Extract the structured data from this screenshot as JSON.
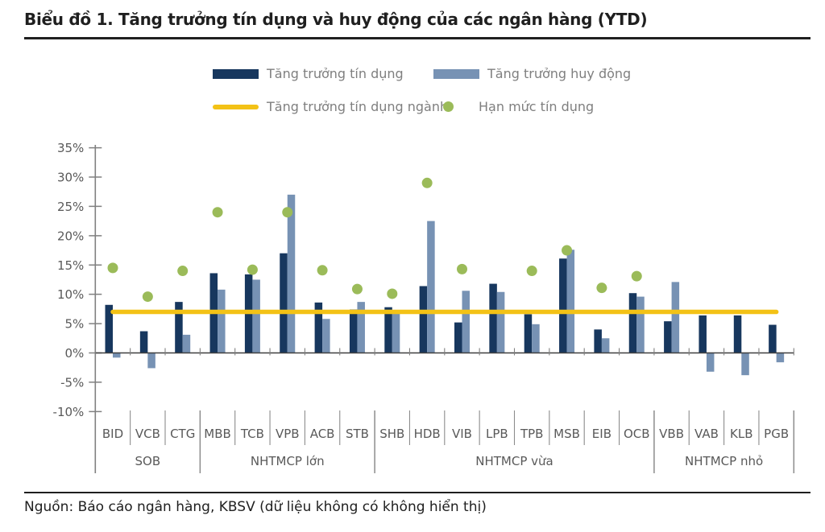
{
  "title": "Biểu đồ 1. Tăng trưởng tín dụng và huy động của các ngân hàng (YTD)",
  "source_note": "Nguồn: Báo cáo ngân hàng, KBSV (dữ liệu không có không hiển thị)",
  "colors": {
    "credit_bar": "#17375E",
    "deposit_bar": "#7792B4",
    "industry_line": "#F3C216",
    "limit_dot": "#9BBB59",
    "axis_line": "#808080",
    "zero_axis_line": "#3F3F3F",
    "axis_text": "#595959",
    "legend_text": "#7F7F7F",
    "separator": "#8C8C8C",
    "title_text": "#1F1F1F"
  },
  "legend": {
    "items": [
      {
        "label": "Tăng trưởng tín dụng",
        "swatch": "bar",
        "color": "#17375E"
      },
      {
        "label": "Tăng trưởng huy động",
        "swatch": "bar",
        "color": "#7792B4"
      },
      {
        "label": "Tăng trưởng tín dụng ngành",
        "swatch": "line",
        "color": "#F3C216"
      },
      {
        "label": "Hạn mức tín dụng",
        "swatch": "dot",
        "color": "#9BBB59"
      }
    ]
  },
  "chart_data": {
    "type": "bar",
    "categories": [
      "BID",
      "VCB",
      "CTG",
      "MBB",
      "TCB",
      "VPB",
      "ACB",
      "STB",
      "SHB",
      "HDB",
      "VIB",
      "LPB",
      "TPB",
      "MSB",
      "EIB",
      "OCB",
      "VBB",
      "VAB",
      "KLB",
      "PGB"
    ],
    "series": [
      {
        "name": "Tăng trưởng tín dụng",
        "type": "bar",
        "color": "#17375E",
        "values": [
          8.2,
          3.7,
          8.7,
          13.6,
          13.4,
          17.0,
          8.6,
          7.4,
          7.8,
          11.4,
          5.2,
          11.8,
          6.6,
          16.1,
          4.0,
          10.2,
          5.4,
          6.4,
          6.4,
          4.8
        ]
      },
      {
        "name": "Tăng trưởng huy động",
        "type": "bar",
        "color": "#7792B4",
        "values": [
          -0.8,
          -2.6,
          3.1,
          10.8,
          12.5,
          27.0,
          5.8,
          8.7,
          7.2,
          22.5,
          10.6,
          10.4,
          4.9,
          17.6,
          2.5,
          9.6,
          12.1,
          -3.2,
          -3.8,
          -1.6
        ]
      },
      {
        "name": "Tăng trưởng tín dụng ngành",
        "type": "line",
        "color": "#F3C216",
        "value": 7.0
      },
      {
        "name": "Hạn mức tín dụng",
        "type": "scatter",
        "color": "#9BBB59",
        "values": [
          14.5,
          9.6,
          14.0,
          24.0,
          14.2,
          24.0,
          14.1,
          10.9,
          10.1,
          29.0,
          14.3,
          null,
          14.0,
          17.5,
          11.1,
          13.1,
          null,
          null,
          null,
          null
        ]
      }
    ],
    "groups": [
      {
        "label": "SOB",
        "from": 0,
        "to": 2
      },
      {
        "label": "NHTMCP lớn",
        "from": 3,
        "to": 7
      },
      {
        "label": "NHTMCP vừa",
        "from": 8,
        "to": 15
      },
      {
        "label": "NHTMCP nhỏ",
        "from": 16,
        "to": 19
      }
    ],
    "y_axis": {
      "min": -10,
      "max": 35,
      "step": 5,
      "suffix": "%"
    },
    "grid": false,
    "legend_position": "top"
  }
}
